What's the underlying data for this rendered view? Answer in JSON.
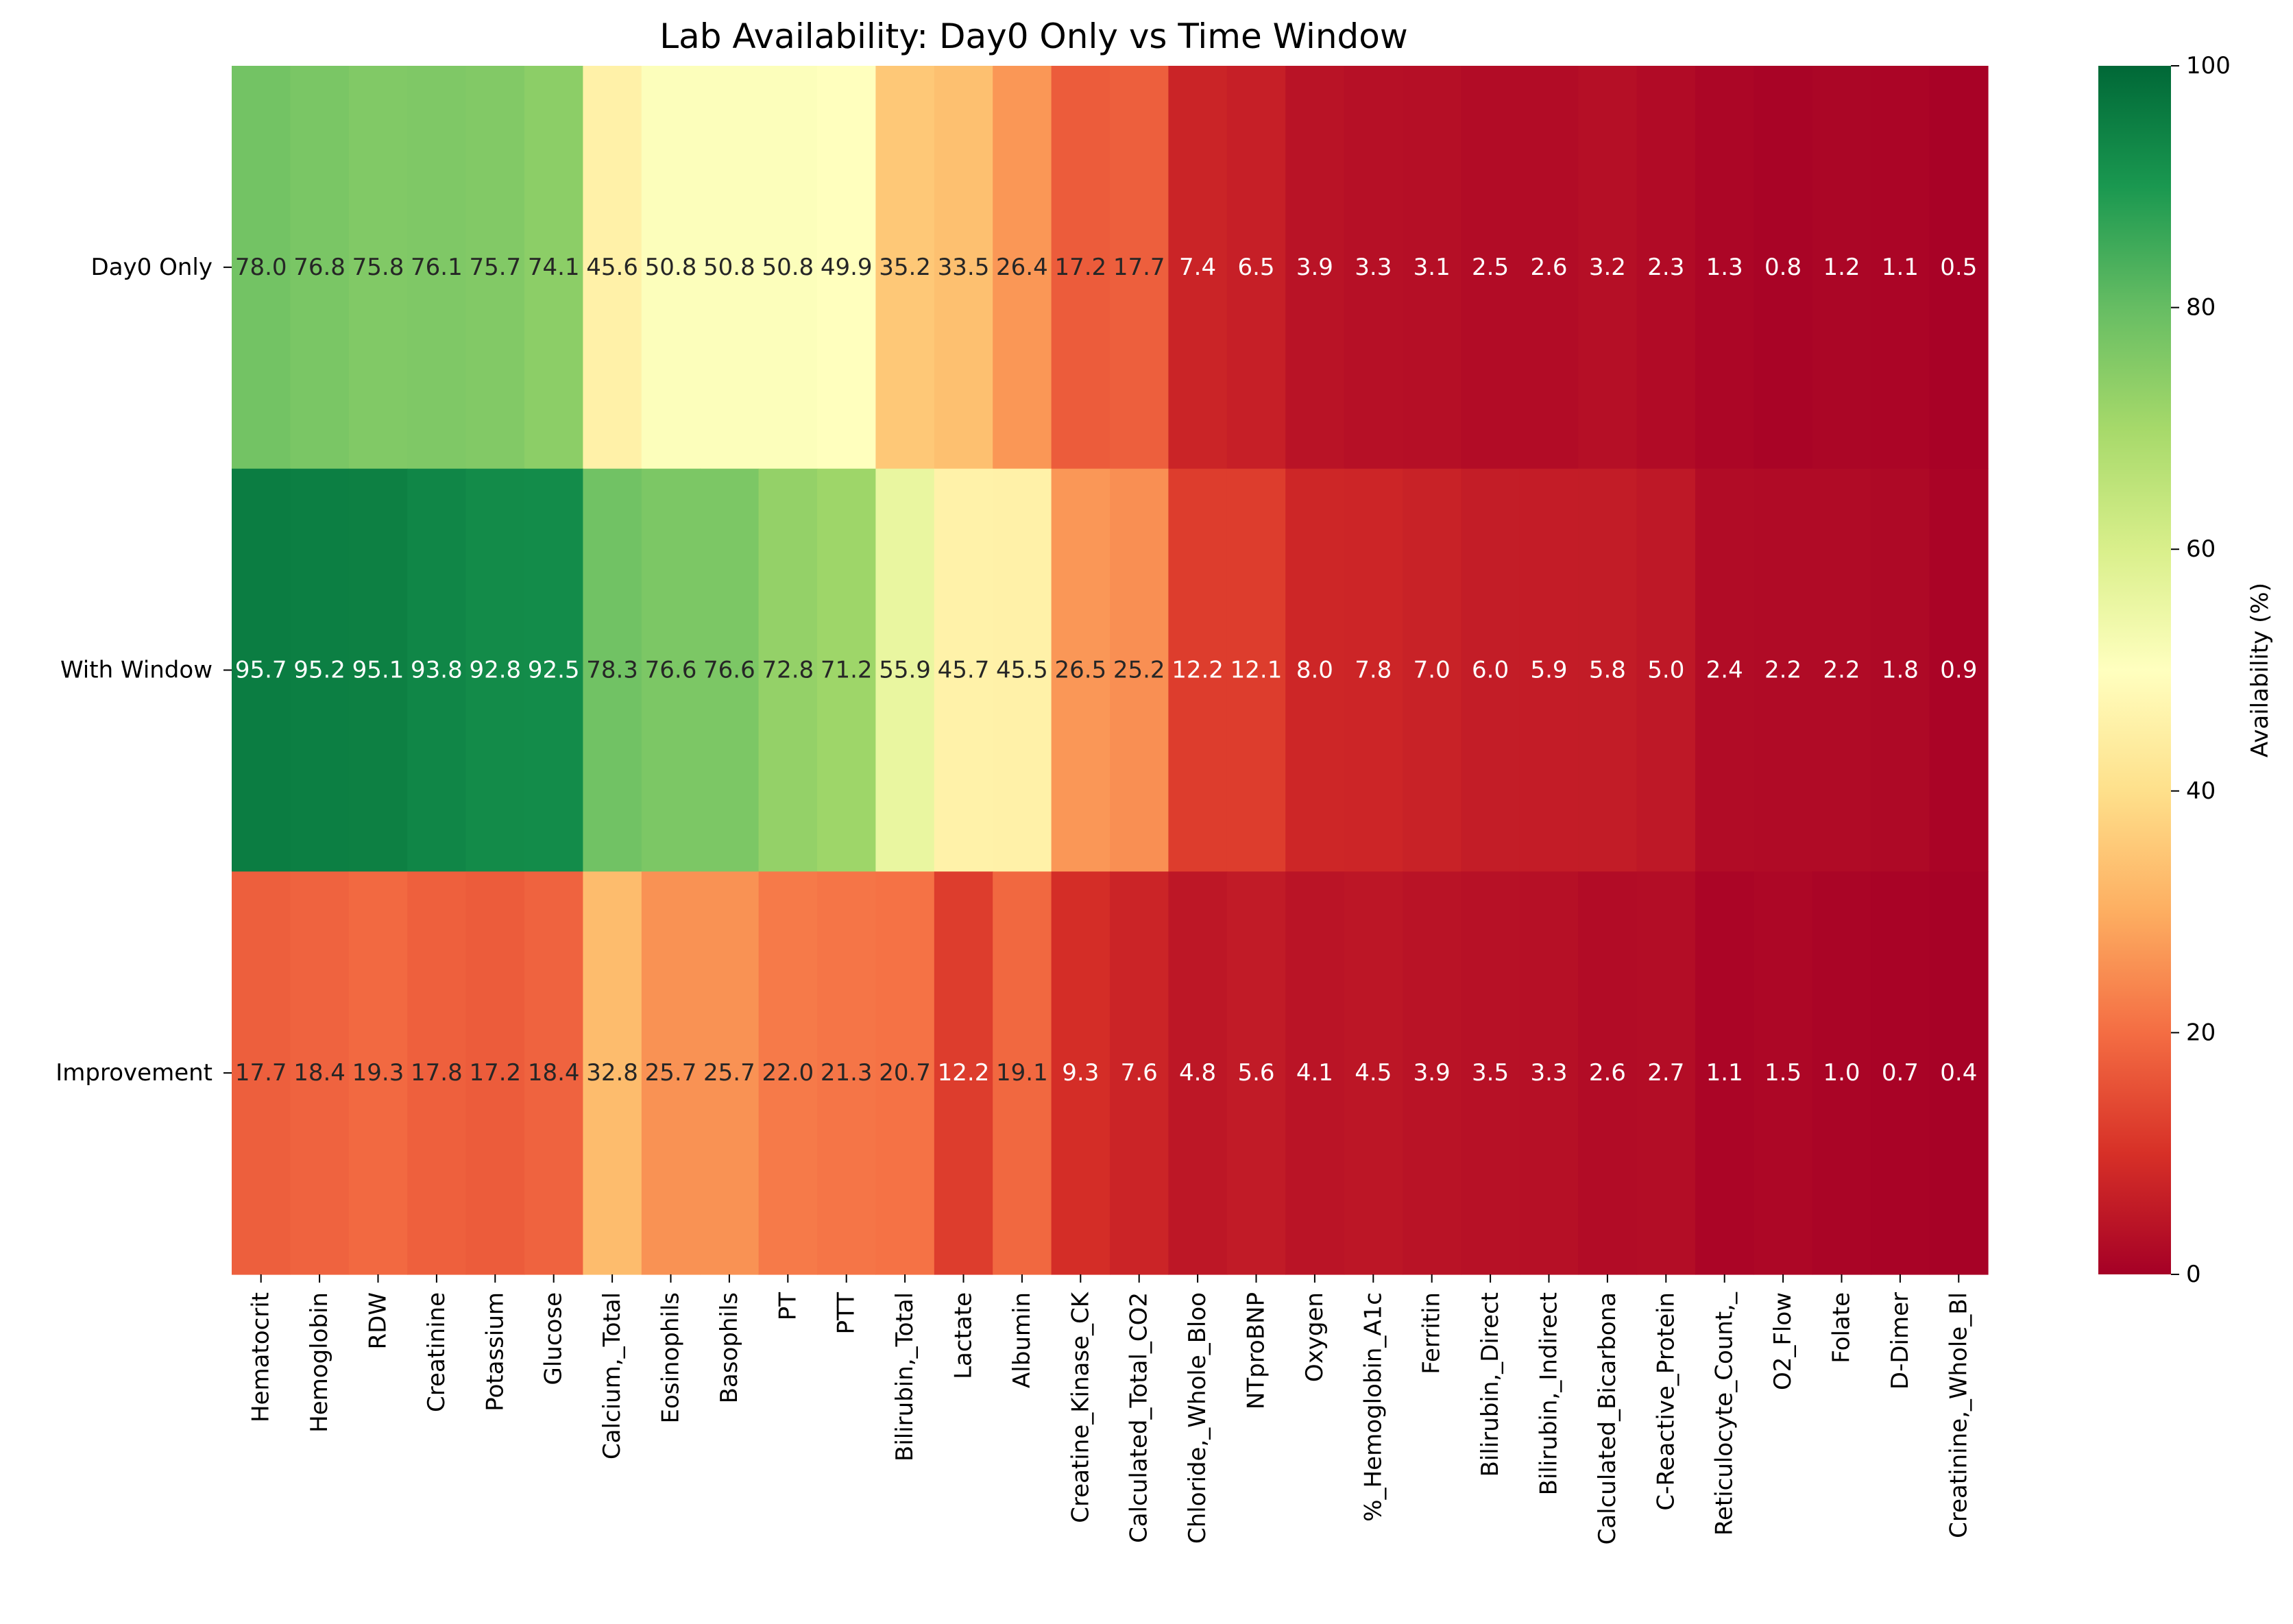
{
  "chart_data": {
    "type": "heatmap",
    "title": "Lab Availability: Day0 Only vs Time Window",
    "xlabel": "",
    "ylabel": "",
    "rows": [
      "Day0 Only",
      "With Window",
      "Improvement"
    ],
    "columns": [
      "Hematocrit",
      "Hemoglobin",
      "RDW",
      "Creatinine",
      "Potassium",
      "Glucose",
      "Calcium,_Total",
      "Eosinophils",
      "Basophils",
      "PT",
      "PTT",
      "Bilirubin,_Total",
      "Lactate",
      "Albumin",
      "Creatine_Kinase_CK",
      "Calculated_Total_CO2",
      "Chloride,_Whole_Bloo",
      "NTproBNP",
      "Oxygen",
      "%_Hemoglobin_A1c",
      "Ferritin",
      "Bilirubin,_Direct",
      "Bilirubin,_Indirect",
      "Calculated_Bicarbona",
      "C-Reactive_Protein",
      "Reticulocyte_Count,_",
      "O2_Flow",
      "Folate",
      "D-Dimer",
      "Creatinine,_Whole_Bl"
    ],
    "values": [
      [
        78.0,
        76.8,
        75.8,
        76.1,
        75.7,
        74.1,
        45.6,
        50.8,
        50.8,
        50.8,
        49.9,
        35.2,
        33.5,
        26.4,
        17.2,
        17.7,
        7.4,
        6.5,
        3.9,
        3.3,
        3.1,
        2.5,
        2.6,
        3.2,
        2.3,
        1.3,
        0.8,
        1.2,
        1.1,
        0.5
      ],
      [
        95.7,
        95.2,
        95.1,
        93.8,
        92.8,
        92.5,
        78.3,
        76.6,
        76.6,
        72.8,
        71.2,
        55.9,
        45.7,
        45.5,
        26.5,
        25.2,
        12.2,
        12.1,
        8.0,
        7.8,
        7.0,
        6.0,
        5.9,
        5.8,
        5.0,
        2.4,
        2.2,
        2.2,
        1.8,
        0.9
      ],
      [
        17.7,
        18.4,
        19.3,
        17.8,
        17.2,
        18.4,
        32.8,
        25.7,
        25.7,
        22.0,
        21.3,
        20.7,
        12.2,
        19.1,
        9.3,
        7.6,
        4.8,
        5.6,
        4.1,
        4.5,
        3.9,
        3.5,
        3.3,
        2.6,
        2.7,
        1.1,
        1.5,
        1.0,
        0.7,
        0.4
      ]
    ],
    "value_format": "0.1f",
    "colormap": "RdYlGn",
    "vmin": 0,
    "vmax": 100,
    "colorbar": {
      "label": "Availability (%)",
      "ticks": [
        0,
        20,
        40,
        60,
        80,
        100
      ]
    },
    "grid": false
  }
}
